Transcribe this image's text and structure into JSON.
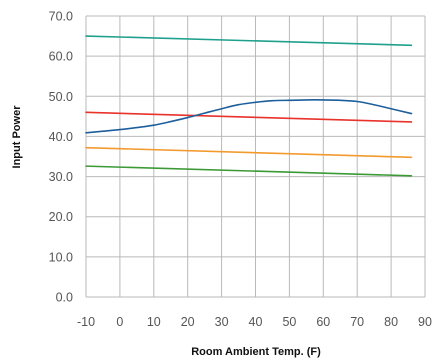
{
  "chart_data": {
    "type": "line",
    "xlabel": "Room Ambient Temp. (F)",
    "ylabel": "Input Power",
    "xlim": [
      -10,
      90
    ],
    "ylim": [
      0,
      70
    ],
    "x_ticks": [
      -10,
      0,
      10,
      20,
      30,
      40,
      50,
      60,
      70,
      80,
      90
    ],
    "x_tick_labels": [
      "-10",
      "0",
      "10",
      "20",
      "30",
      "40",
      "50",
      "60",
      "70",
      "80",
      "90"
    ],
    "y_ticks": [
      0,
      10,
      20,
      30,
      40,
      50,
      60,
      70
    ],
    "y_tick_labels": [
      "0.0",
      "10.0",
      "20.0",
      "30.0",
      "40.0",
      "50.0",
      "60.0",
      "70.0"
    ],
    "grid": true,
    "series": [
      {
        "color": "#1fa08e",
        "x": [
          -10,
          86
        ],
        "y": [
          65.0,
          62.7
        ]
      },
      {
        "color": "#e8322a",
        "x": [
          -10,
          86
        ],
        "y": [
          46.0,
          43.6
        ]
      },
      {
        "color": "#f39a2e",
        "x": [
          -10,
          86
        ],
        "y": [
          37.2,
          34.8
        ]
      },
      {
        "color": "#3b9a35",
        "x": [
          -10,
          86
        ],
        "y": [
          32.6,
          30.2
        ]
      },
      {
        "color": "#1d5e9c",
        "x": [
          -10,
          -5,
          0,
          5,
          10,
          15,
          20,
          25,
          30,
          35,
          40,
          45,
          50,
          55,
          60,
          65,
          70,
          75,
          80,
          86
        ],
        "y": [
          40.9,
          41.3,
          41.7,
          42.2,
          42.8,
          43.7,
          44.7,
          45.8,
          46.9,
          47.9,
          48.5,
          48.9,
          49.0,
          49.1,
          49.1,
          49.0,
          48.7,
          47.9,
          46.9,
          45.7
        ]
      }
    ]
  }
}
